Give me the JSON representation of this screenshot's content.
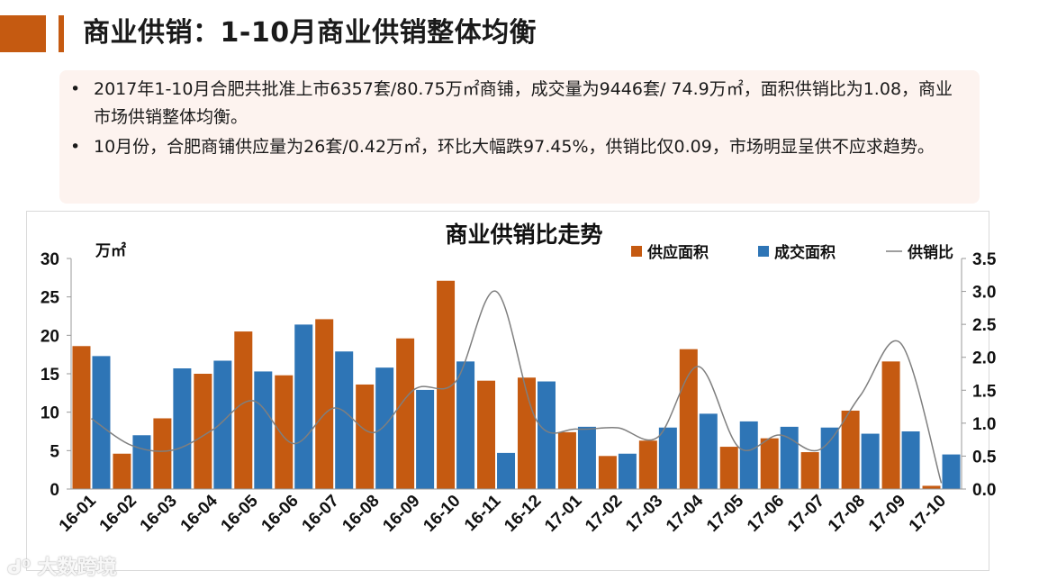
{
  "header": {
    "title": "商业供销：1-10月商业供销整体均衡",
    "accent_color": "#c55a11"
  },
  "summary": {
    "background_color": "#fdf3ef",
    "items": [
      {
        "bullet": "•",
        "text": "2017年1-10月合肥共批准上市6357套/80.75万㎡商铺，成交量为9446套/ 74.9万㎡，面积供销比为1.08，商业市场供销整体均衡。"
      },
      {
        "bullet": "•",
        "text": "10月份，合肥商铺供应量为26套/0.42万㎡，环比大幅跌97.45%，供销比仅0.09，市场明显呈供不应求趋势。"
      }
    ]
  },
  "watermark": {
    "text": "大数跨境"
  },
  "chart_data": {
    "type": "bar",
    "title": "商业供销比走势",
    "ylabel": "万㎡",
    "xlabel": "",
    "categories": [
      "16-01",
      "16-02",
      "16-03",
      "16-04",
      "16-05",
      "16-06",
      "16-07",
      "16-08",
      "16-09",
      "16-10",
      "16-11",
      "16-12",
      "17-01",
      "17-02",
      "17-03",
      "17-04",
      "17-05",
      "17-06",
      "17-07",
      "17-08",
      "17-09",
      "17-10"
    ],
    "series": [
      {
        "name": "供应面积",
        "type": "bar",
        "axis": "left",
        "color": "#c55a11",
        "values": [
          18.6,
          4.6,
          9.2,
          15.0,
          20.5,
          14.8,
          22.1,
          13.6,
          19.6,
          27.1,
          14.1,
          14.5,
          7.4,
          4.3,
          6.3,
          18.2,
          5.5,
          6.6,
          4.8,
          10.2,
          16.6,
          0.42
        ]
      },
      {
        "name": "成交面积",
        "type": "bar",
        "axis": "left",
        "color": "#2e75b6",
        "values": [
          17.3,
          7.0,
          15.7,
          16.7,
          15.3,
          21.4,
          17.9,
          15.8,
          12.9,
          16.6,
          4.7,
          14.0,
          8.1,
          4.6,
          8.0,
          9.8,
          8.8,
          8.1,
          8.0,
          7.2,
          7.5,
          4.5
        ]
      },
      {
        "name": "供销比",
        "type": "line",
        "axis": "right",
        "color": "#7f7f7f",
        "values": [
          1.07,
          0.66,
          0.59,
          0.9,
          1.34,
          0.69,
          1.23,
          0.86,
          1.52,
          1.63,
          3.0,
          1.04,
          0.91,
          0.93,
          0.79,
          1.86,
          0.63,
          0.82,
          0.6,
          1.42,
          2.21,
          0.09
        ]
      }
    ],
    "y_left": {
      "min": 0,
      "max": 30,
      "ticks": [
        "0",
        "5",
        "10",
        "15",
        "20",
        "25",
        "30"
      ]
    },
    "y_right": {
      "min": 0,
      "max": 3.5,
      "ticks": [
        "0.0",
        "0.5",
        "1.0",
        "1.5",
        "2.0",
        "2.5",
        "3.0",
        "3.5"
      ]
    },
    "legend_position": "top-right",
    "grid": false
  }
}
